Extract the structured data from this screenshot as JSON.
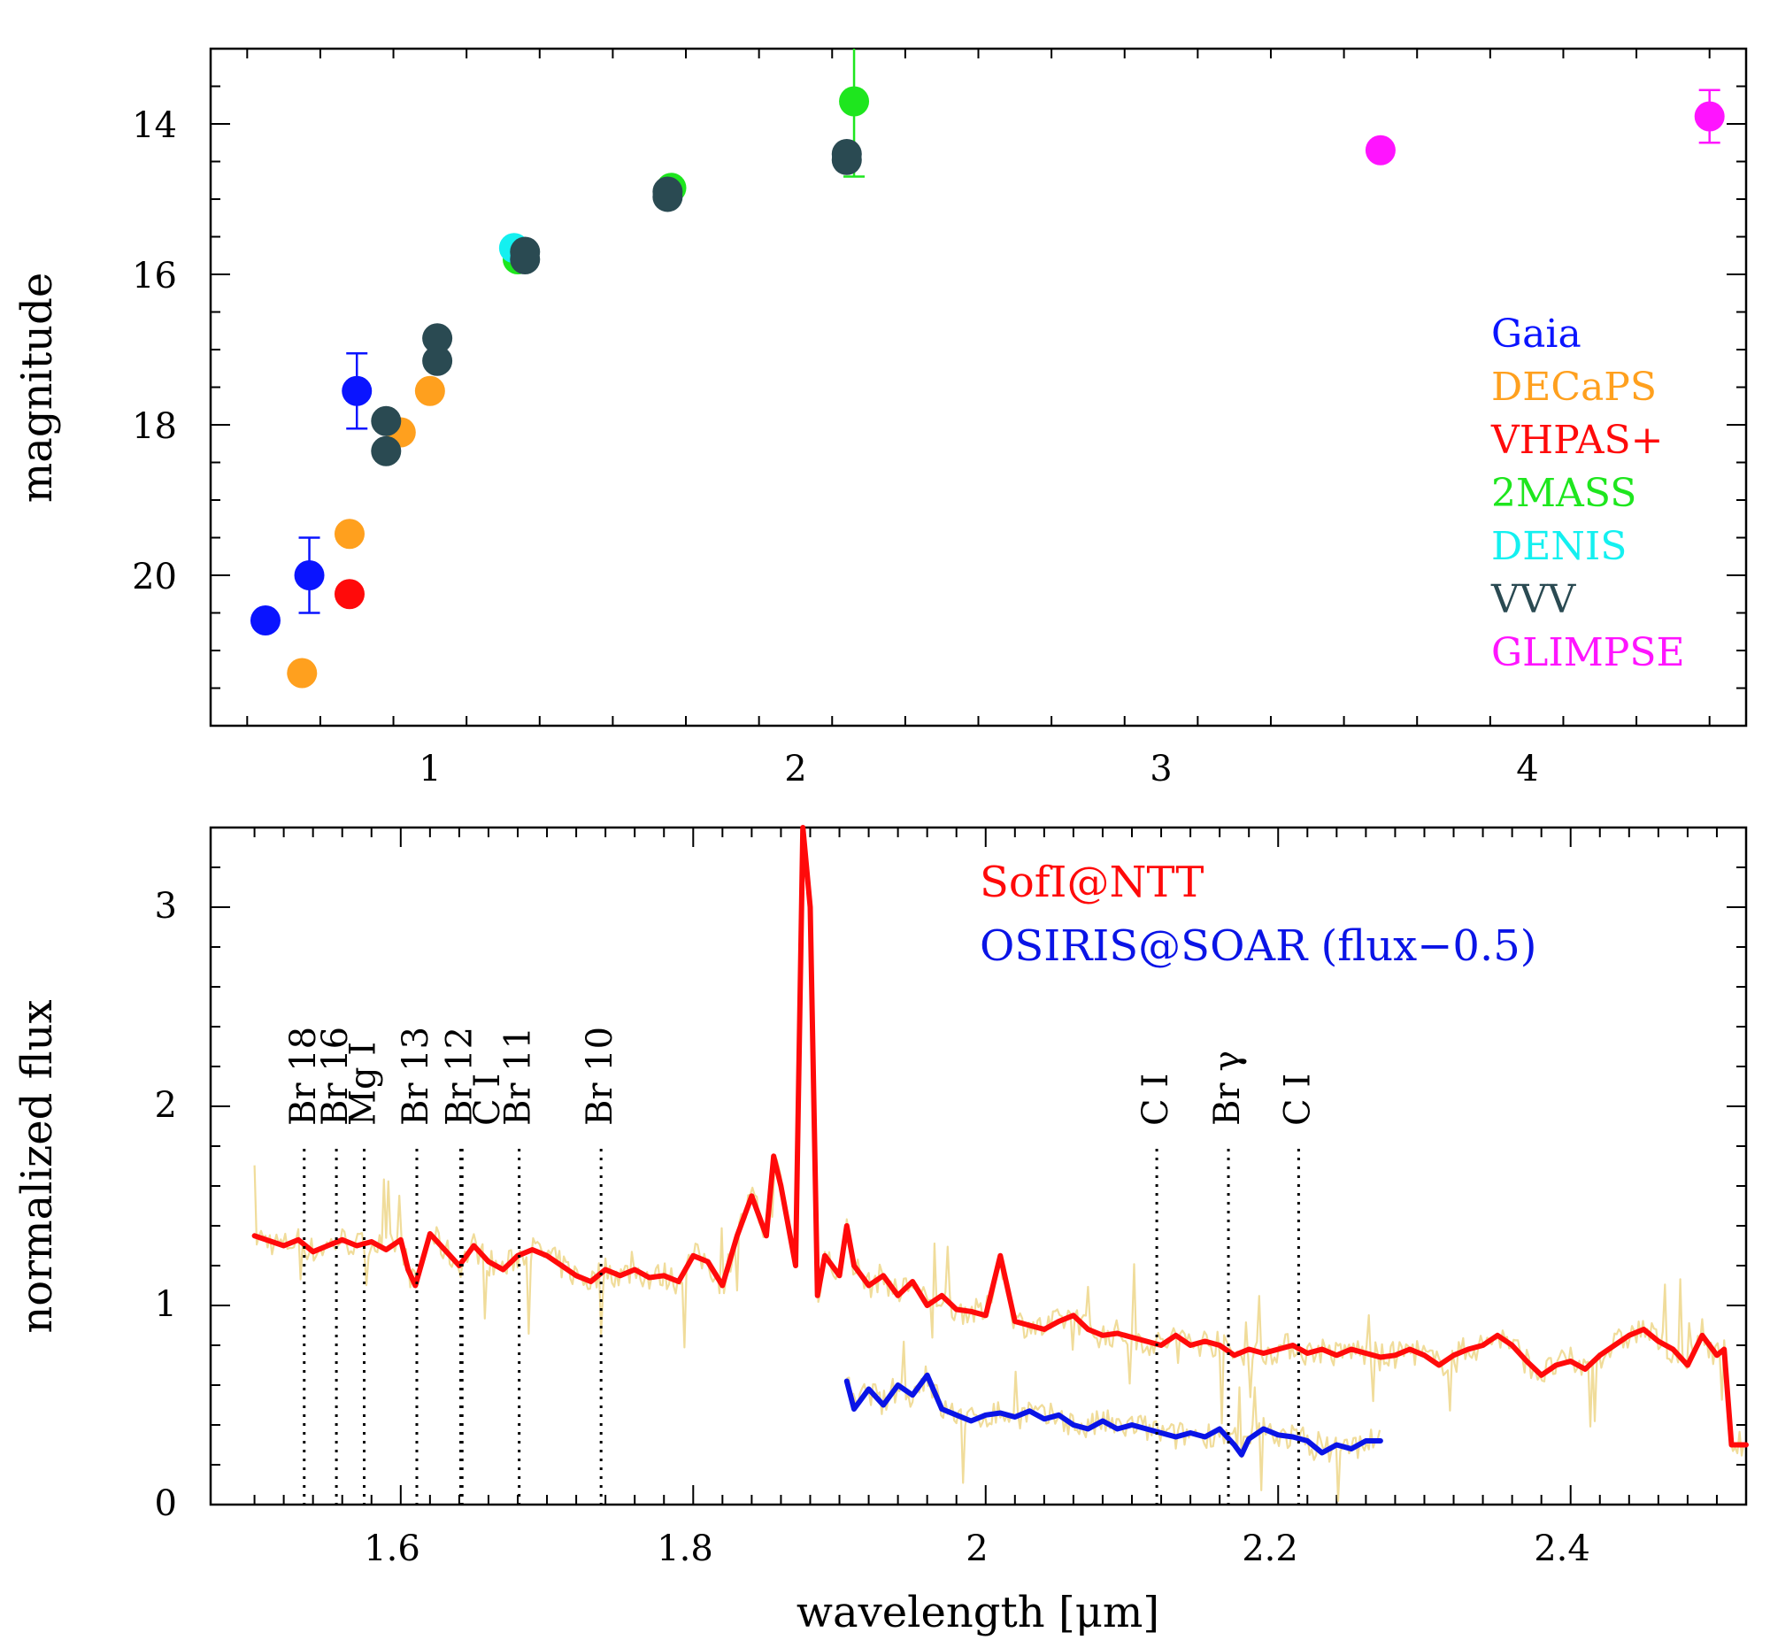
{
  "chart_data": [
    {
      "type": "scatter",
      "title": "",
      "xlabel": "",
      "ylabel": "magnitude",
      "xlim": [
        0.4,
        4.6
      ],
      "ylim": [
        22.0,
        13.0
      ],
      "y_inverted": true,
      "x_tick_labels": [
        "1",
        "2",
        "3",
        "4"
      ],
      "y_tick_labels": [
        "14",
        "16",
        "18",
        "20"
      ],
      "legend_position": "right",
      "series": [
        {
          "name": "Gaia",
          "color": "#0a14ff",
          "points": [
            {
              "x": 0.55,
              "y": 20.6
            },
            {
              "x": 0.67,
              "y": 20.0,
              "err": 0.5
            },
            {
              "x": 0.8,
              "y": 17.55,
              "err": 0.5
            }
          ]
        },
        {
          "name": "DECaPS",
          "color": "#ffa01e",
          "points": [
            {
              "x": 0.65,
              "y": 21.3
            },
            {
              "x": 0.78,
              "y": 19.45
            },
            {
              "x": 0.92,
              "y": 18.1
            },
            {
              "x": 1.0,
              "y": 17.55
            }
          ]
        },
        {
          "name": "VHPAS+",
          "color": "#ff0a0a",
          "points": [
            {
              "x": 0.78,
              "y": 20.25
            }
          ]
        },
        {
          "name": "2MASS",
          "color": "#1ee61e",
          "points": [
            {
              "x": 1.24,
              "y": 15.8
            },
            {
              "x": 1.66,
              "y": 14.85
            },
            {
              "x": 2.16,
              "y": 13.7,
              "err": 1.0
            }
          ]
        },
        {
          "name": "DENIS",
          "color": "#14f0f0",
          "points": [
            {
              "x": 1.23,
              "y": 15.65
            }
          ]
        },
        {
          "name": "VVV",
          "color": "#2a4a52",
          "points": [
            {
              "x": 0.88,
              "y": 17.95
            },
            {
              "x": 0.88,
              "y": 18.35
            },
            {
              "x": 1.02,
              "y": 16.85
            },
            {
              "x": 1.02,
              "y": 17.15
            },
            {
              "x": 1.26,
              "y": 15.7
            },
            {
              "x": 1.26,
              "y": 15.8
            },
            {
              "x": 1.65,
              "y": 14.9
            },
            {
              "x": 1.65,
              "y": 14.97
            },
            {
              "x": 2.14,
              "y": 14.4
            },
            {
              "x": 2.14,
              "y": 14.48
            }
          ]
        },
        {
          "name": "GLIMPSE",
          "color": "#ff14ff",
          "points": [
            {
              "x": 3.6,
              "y": 14.35
            },
            {
              "x": 4.5,
              "y": 13.9,
              "err": 0.35
            }
          ]
        }
      ]
    },
    {
      "type": "line",
      "title": "",
      "xlabel": "wavelength [μm]",
      "ylabel": "normalized flux",
      "xlim": [
        1.47,
        2.52
      ],
      "ylim": [
        0.0,
        3.4
      ],
      "x_tick_labels": [
        "1.6",
        "1.8",
        "2",
        "2.2",
        "2.4"
      ],
      "y_tick_labels": [
        "0",
        "1",
        "2",
        "3"
      ],
      "legend_position": "top-right",
      "series": [
        {
          "name": "SofI@NTT",
          "color": "#ff0a0a",
          "x": [
            1.5,
            1.52,
            1.53,
            1.54,
            1.55,
            1.56,
            1.57,
            1.58,
            1.59,
            1.6,
            1.605,
            1.61,
            1.62,
            1.63,
            1.64,
            1.65,
            1.66,
            1.67,
            1.68,
            1.69,
            1.7,
            1.71,
            1.72,
            1.73,
            1.74,
            1.75,
            1.76,
            1.77,
            1.78,
            1.79,
            1.8,
            1.81,
            1.82,
            1.83,
            1.84,
            1.85,
            1.855,
            1.86,
            1.865,
            1.87,
            1.875,
            1.88,
            1.885,
            1.89,
            1.9,
            1.905,
            1.91,
            1.92,
            1.93,
            1.94,
            1.95,
            1.96,
            1.97,
            1.98,
            1.99,
            2.0,
            2.01,
            2.02,
            2.03,
            2.04,
            2.05,
            2.06,
            2.07,
            2.08,
            2.09,
            2.1,
            2.11,
            2.12,
            2.13,
            2.14,
            2.15,
            2.16,
            2.17,
            2.18,
            2.19,
            2.2,
            2.21,
            2.22,
            2.23,
            2.24,
            2.25,
            2.26,
            2.27,
            2.28,
            2.29,
            2.3,
            2.31,
            2.32,
            2.33,
            2.34,
            2.35,
            2.36,
            2.37,
            2.38,
            2.39,
            2.4,
            2.41,
            2.42,
            2.43,
            2.44,
            2.45,
            2.46,
            2.47,
            2.48,
            2.49,
            2.5,
            2.505,
            2.51,
            2.52
          ],
          "y": [
            1.35,
            1.3,
            1.33,
            1.27,
            1.3,
            1.33,
            1.3,
            1.32,
            1.28,
            1.33,
            1.18,
            1.1,
            1.36,
            1.28,
            1.2,
            1.3,
            1.22,
            1.18,
            1.25,
            1.28,
            1.25,
            1.2,
            1.15,
            1.12,
            1.18,
            1.15,
            1.18,
            1.14,
            1.15,
            1.12,
            1.25,
            1.22,
            1.1,
            1.35,
            1.55,
            1.35,
            1.75,
            1.6,
            1.4,
            1.2,
            3.4,
            3.0,
            1.05,
            1.25,
            1.15,
            1.4,
            1.2,
            1.1,
            1.15,
            1.05,
            1.12,
            1.0,
            1.05,
            0.98,
            0.97,
            0.95,
            1.25,
            0.92,
            0.9,
            0.88,
            0.92,
            0.95,
            0.88,
            0.85,
            0.86,
            0.84,
            0.82,
            0.8,
            0.85,
            0.8,
            0.82,
            0.8,
            0.75,
            0.78,
            0.76,
            0.78,
            0.8,
            0.76,
            0.78,
            0.75,
            0.78,
            0.76,
            0.74,
            0.75,
            0.78,
            0.75,
            0.7,
            0.75,
            0.78,
            0.8,
            0.85,
            0.8,
            0.72,
            0.65,
            0.7,
            0.72,
            0.68,
            0.75,
            0.8,
            0.85,
            0.88,
            0.82,
            0.78,
            0.7,
            0.85,
            0.75,
            0.78,
            0.3,
            0.3
          ]
        },
        {
          "name": "OSIRIS@SOAR (flux−0.5)",
          "color": "#0a14e6",
          "x": [
            1.905,
            1.91,
            1.92,
            1.93,
            1.94,
            1.95,
            1.96,
            1.97,
            1.98,
            1.99,
            2.0,
            2.01,
            2.02,
            2.03,
            2.04,
            2.05,
            2.06,
            2.07,
            2.08,
            2.09,
            2.1,
            2.11,
            2.12,
            2.13,
            2.14,
            2.15,
            2.16,
            2.17,
            2.175,
            2.18,
            2.19,
            2.2,
            2.21,
            2.22,
            2.23,
            2.24,
            2.25,
            2.26,
            2.27
          ],
          "y": [
            0.62,
            0.48,
            0.58,
            0.5,
            0.6,
            0.55,
            0.65,
            0.48,
            0.45,
            0.42,
            0.45,
            0.46,
            0.44,
            0.47,
            0.43,
            0.45,
            0.4,
            0.38,
            0.42,
            0.38,
            0.4,
            0.38,
            0.36,
            0.34,
            0.36,
            0.34,
            0.38,
            0.3,
            0.25,
            0.33,
            0.38,
            0.35,
            0.34,
            0.32,
            0.26,
            0.3,
            0.28,
            0.32,
            0.32
          ]
        }
      ],
      "noise_color": "#f0dc9a",
      "line_markers": [
        {
          "label": "Br 18",
          "x": 1.534
        },
        {
          "label": "Br 16",
          "x": 1.556
        },
        {
          "label": "Mg I",
          "x": 1.575
        },
        {
          "label": "Br 13",
          "x": 1.611
        },
        {
          "label": "Br 12",
          "x": 1.641
        },
        {
          "label": "C I",
          "x": 1.642
        },
        {
          "label": "Br 11",
          "x": 1.681
        },
        {
          "label": "Br 10",
          "x": 1.737
        },
        {
          "label": "C I",
          "x": 2.117
        },
        {
          "label": "Br γ",
          "x": 2.166
        },
        {
          "label": "C I",
          "x": 2.214
        }
      ]
    }
  ]
}
